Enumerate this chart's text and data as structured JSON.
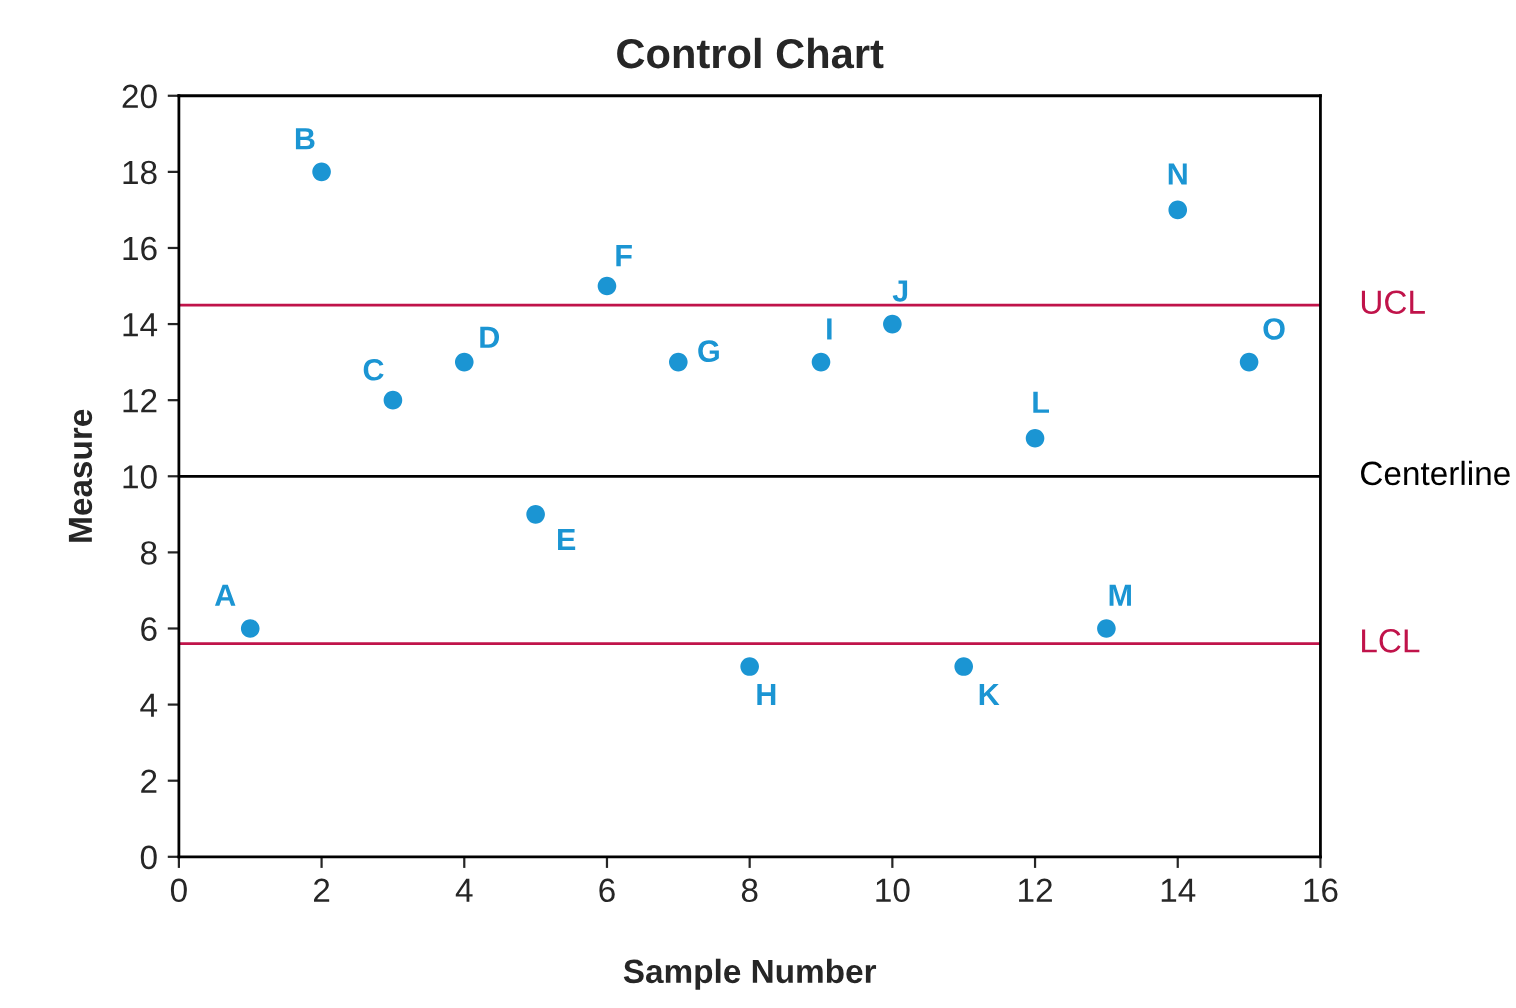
{
  "chart_data": {
    "type": "scatter",
    "title": "Control Chart",
    "xlabel": "Sample Number",
    "ylabel": "Measure",
    "series": [
      {
        "color": "#1b95d3",
        "x": [
          1,
          2,
          3,
          4,
          5,
          6,
          7,
          8,
          9,
          10,
          11,
          12,
          13,
          14,
          15
        ],
        "values": [
          6,
          18,
          12,
          13,
          9,
          15,
          13,
          5,
          13,
          14,
          5,
          11,
          6,
          17,
          13
        ]
      }
    ],
    "annotations": [
      {
        "text": "A",
        "x": 1,
        "y": 6
      },
      {
        "text": "B",
        "x": 2,
        "y": 18
      },
      {
        "text": "C",
        "x": 3,
        "y": 12
      },
      {
        "text": "D",
        "x": 4,
        "y": 13
      },
      {
        "text": "E",
        "x": 5,
        "y": 9
      },
      {
        "text": "F",
        "x": 6,
        "y": 15
      },
      {
        "text": "G",
        "x": 7,
        "y": 13
      },
      {
        "text": "H",
        "x": 8,
        "y": 5
      },
      {
        "text": "I",
        "x": 9,
        "y": 13
      },
      {
        "text": "J",
        "x": 10,
        "y": 14
      },
      {
        "text": "K",
        "x": 11,
        "y": 5
      },
      {
        "text": "L",
        "x": 12,
        "y": 11
      },
      {
        "text": "M",
        "x": 13,
        "y": 6
      },
      {
        "text": "N",
        "x": 14,
        "y": 17
      },
      {
        "text": "O",
        "x": 15,
        "y": 13
      }
    ],
    "ref_lines": [
      {
        "axis": "y",
        "value": 14.5,
        "label": "UCL",
        "color": "#c0134a"
      },
      {
        "axis": "y",
        "value": 10,
        "label": "Centerline",
        "color": "#000000"
      },
      {
        "axis": "y",
        "value": 5.6,
        "label": "LCL",
        "color": "#c0134a"
      }
    ],
    "xlim": [
      0,
      16
    ],
    "xticks": [
      0,
      2,
      4,
      6,
      8,
      10,
      12,
      14,
      16
    ],
    "ylim": [
      0,
      20
    ],
    "yticks": [
      0,
      2,
      4,
      6,
      8,
      10,
      12,
      14,
      16,
      18,
      20
    ],
    "grid": false,
    "legend": false,
    "marker": "circle"
  }
}
